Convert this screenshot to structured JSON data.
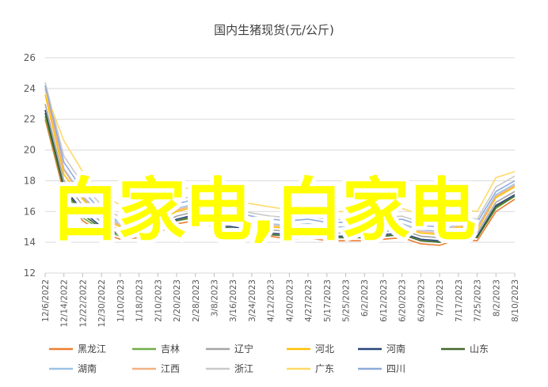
{
  "chart_data": {
    "type": "line",
    "title": "国内生猪现货(元/公斤)",
    "xlabel": "",
    "ylabel": "",
    "ylim": [
      12,
      26
    ],
    "yticks": [
      12,
      14,
      16,
      18,
      20,
      22,
      24,
      26
    ],
    "grid": true,
    "legend_position": "bottom",
    "x_tick_labels": [
      "12/6/2022",
      "12/14/2022",
      "12/22/2022",
      "12/30/2022",
      "1/10/2023",
      "1/18/2023",
      "2/10/2023",
      "2/20/2023",
      "2/28/2023",
      "3/8/2023",
      "3/16/2023",
      "3/24/2023",
      "4/12/2023",
      "4/20/2023",
      "4/27/2023",
      "5/17/2023",
      "5/25/2023",
      "6/2/2023",
      "6/12/2023",
      "6/20/2023",
      "6/29/2023",
      "7/7/2023",
      "7/17/2023",
      "7/25/2023",
      "8/2/2023",
      "8/10/2023"
    ],
    "x": [
      "12/6/2022",
      "12/14/2022",
      "12/22/2022",
      "12/30/2022",
      "1/10/2023",
      "1/18/2023",
      "2/10/2023",
      "2/20/2023",
      "2/28/2023",
      "3/8/2023",
      "3/16/2023",
      "3/24/2023",
      "4/12/2023",
      "4/20/2023",
      "4/27/2023",
      "5/17/2023",
      "5/25/2023",
      "6/2/2023",
      "6/12/2023",
      "6/20/2023",
      "6/29/2023",
      "7/7/2023",
      "7/17/2023",
      "7/25/2023",
      "8/2/2023",
      "8/10/2023"
    ],
    "series": [
      {
        "name": "黑龙江",
        "color": "#ED7D31",
        "values": [
          22.0,
          17.2,
          15.4,
          14.6,
          14.2,
          14.3,
          14.6,
          15.2,
          15.4,
          15.0,
          14.8,
          14.6,
          14.4,
          14.2,
          14.3,
          14.1,
          14.1,
          14.1,
          14.2,
          14.3,
          13.9,
          13.8,
          14.2,
          14.1,
          16.0,
          16.8
        ]
      },
      {
        "name": "吉林",
        "color": "#70AD47",
        "values": [
          22.2,
          17.4,
          15.6,
          14.8,
          14.4,
          14.5,
          14.7,
          15.4,
          15.6,
          15.1,
          14.9,
          14.7,
          14.5,
          14.4,
          14.5,
          14.3,
          14.3,
          14.3,
          14.4,
          14.5,
          14.1,
          14.0,
          14.4,
          14.3,
          16.2,
          17.0
        ]
      },
      {
        "name": "辽宁",
        "color": "#A5A5A5",
        "values": [
          23.0,
          18.0,
          16.4,
          15.3,
          14.8,
          14.9,
          15.1,
          15.7,
          16.0,
          15.4,
          15.2,
          15.0,
          14.8,
          14.7,
          14.8,
          14.6,
          14.6,
          14.6,
          14.7,
          14.8,
          14.4,
          14.3,
          14.8,
          14.6,
          16.6,
          17.3
        ]
      },
      {
        "name": "河北",
        "color": "#FFC000",
        "values": [
          23.6,
          18.4,
          16.8,
          15.6,
          15.0,
          15.2,
          15.4,
          16.0,
          16.3,
          15.7,
          15.5,
          15.2,
          15.0,
          14.9,
          15.0,
          14.8,
          14.8,
          14.8,
          14.9,
          15.0,
          14.6,
          14.5,
          15.0,
          14.8,
          16.9,
          17.6
        ]
      },
      {
        "name": "河南",
        "color": "#264478",
        "values": [
          22.6,
          17.6,
          16.0,
          15.0,
          14.6,
          14.7,
          14.9,
          15.5,
          15.8,
          15.2,
          15.0,
          14.8,
          14.6,
          14.5,
          14.6,
          14.4,
          14.4,
          14.4,
          14.5,
          14.6,
          14.2,
          14.1,
          14.6,
          14.4,
          16.4,
          17.1
        ]
      },
      {
        "name": "山东",
        "color": "#43682B",
        "values": [
          22.4,
          17.5,
          15.8,
          14.9,
          14.5,
          14.6,
          14.8,
          15.4,
          15.7,
          15.1,
          14.9,
          14.7,
          14.5,
          14.4,
          14.5,
          14.3,
          14.3,
          14.3,
          14.4,
          14.5,
          14.1,
          14.0,
          14.5,
          14.3,
          16.3,
          17.0
        ]
      },
      {
        "name": "湖南",
        "color": "#9DC3E6",
        "values": [
          24.2,
          18.8,
          17.0,
          15.8,
          15.2,
          15.4,
          15.6,
          16.2,
          16.5,
          15.9,
          15.7,
          15.4,
          15.2,
          15.1,
          15.2,
          15.0,
          15.0,
          15.0,
          15.1,
          15.2,
          14.8,
          14.7,
          15.2,
          15.0,
          17.1,
          17.8
        ]
      },
      {
        "name": "江西",
        "color": "#F4B183",
        "values": [
          24.0,
          18.7,
          16.9,
          15.7,
          15.1,
          15.3,
          15.5,
          16.1,
          16.4,
          15.8,
          15.6,
          15.3,
          15.1,
          15.0,
          15.1,
          14.9,
          14.9,
          14.9,
          15.0,
          15.1,
          14.7,
          14.6,
          15.1,
          14.9,
          17.0,
          17.7
        ]
      },
      {
        "name": "浙江",
        "color": "#C9C9C9",
        "values": [
          24.4,
          19.6,
          17.8,
          16.4,
          15.6,
          15.9,
          16.2,
          16.8,
          17.0,
          16.4,
          16.2,
          15.9,
          15.7,
          15.6,
          15.7,
          15.5,
          15.5,
          15.5,
          15.6,
          15.7,
          15.3,
          15.2,
          15.7,
          15.5,
          17.6,
          18.3
        ]
      },
      {
        "name": "广东",
        "color": "#FFD966",
        "values": [
          23.8,
          20.6,
          18.6,
          17.2,
          16.4,
          16.6,
          16.9,
          17.4,
          17.6,
          17.0,
          16.8,
          16.5,
          16.3,
          16.1,
          16.2,
          16.0,
          16.0,
          16.0,
          16.1,
          16.2,
          15.8,
          15.7,
          16.2,
          16.0,
          18.2,
          18.6
        ]
      },
      {
        "name": "四川",
        "color": "#8FAADC",
        "values": [
          24.2,
          19.2,
          17.4,
          16.0,
          15.3,
          15.6,
          15.9,
          16.5,
          16.8,
          16.2,
          16.0,
          15.7,
          15.5,
          15.4,
          15.5,
          15.3,
          15.3,
          15.3,
          15.4,
          15.5,
          15.1,
          15.0,
          15.5,
          15.3,
          17.3,
          18.0
        ]
      }
    ]
  },
  "overlay": {
    "text": "白家电,白家电"
  }
}
